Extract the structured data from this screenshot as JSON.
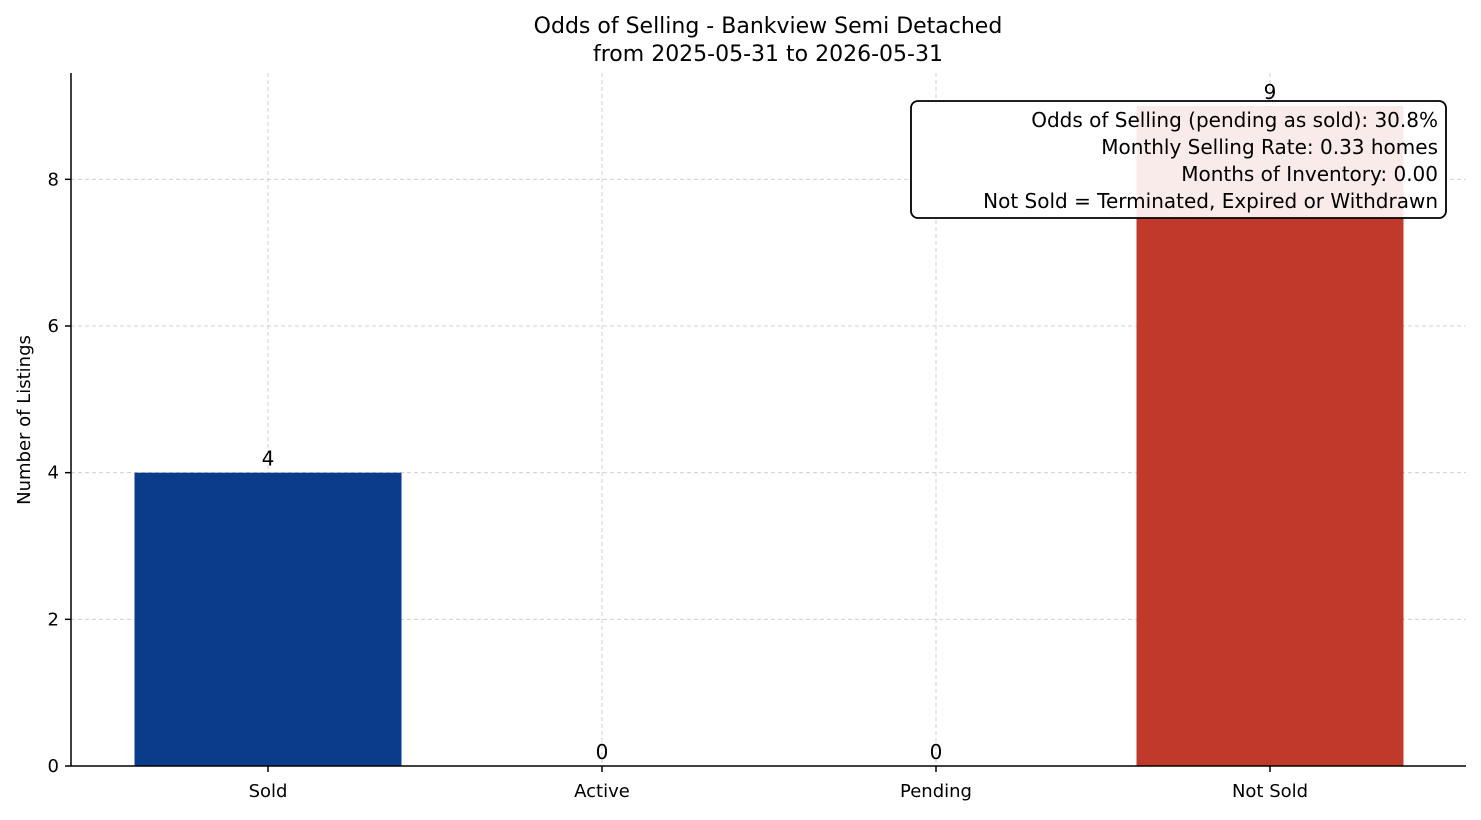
{
  "chart_data": {
    "type": "bar",
    "title": "Odds of Selling - Bankview Semi Detached",
    "subtitle": "from 2025-05-31 to 2026-05-31",
    "xlabel": "",
    "ylabel": "Number of Listings",
    "categories": [
      "Sold",
      "Active",
      "Pending",
      "Not Sold"
    ],
    "values": [
      4,
      0,
      0,
      9
    ],
    "data_labels": [
      "4",
      "0",
      "0",
      "9"
    ],
    "colors": [
      "#0b3c8c",
      "#1f6fd1",
      "#f0a500",
      "#c0392b"
    ],
    "ylim": [
      0,
      9.45
    ],
    "yticks": [
      0,
      2,
      4,
      6,
      8
    ],
    "ytick_labels": [
      "0",
      "2",
      "4",
      "6",
      "8"
    ],
    "grid": true,
    "annotation": {
      "position": "top-right",
      "lines": [
        "Odds of Selling (pending as sold): 30.8%",
        "Monthly Selling Rate: 0.33 homes",
        "Months of Inventory: 0.00",
        "Not Sold = Terminated, Expired or Withdrawn"
      ]
    }
  }
}
